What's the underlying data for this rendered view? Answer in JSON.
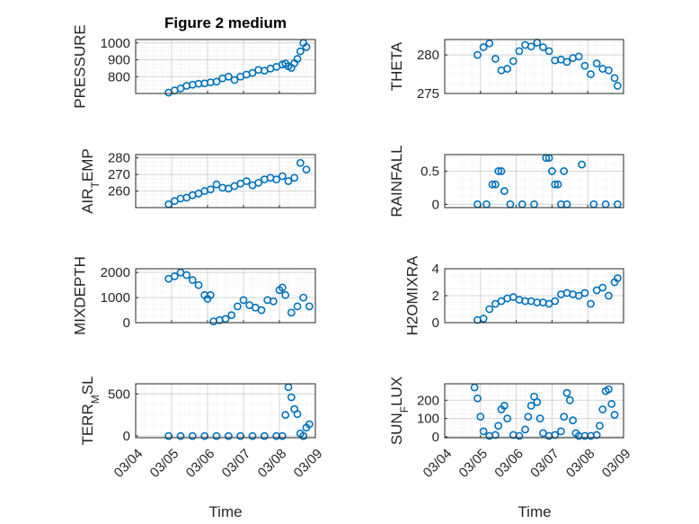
{
  "figure": {
    "title": "Figure 2 medium",
    "xlabel": "Time"
  },
  "colors": {
    "marker": "#0072BD",
    "axis": "#262626",
    "grid": "#dcdcdc"
  },
  "chart_data": [
    {
      "id": "pressure",
      "type": "scatter",
      "ylabel": "PRESSURE",
      "ylabel_sub": "",
      "ylim": [
        700,
        1020
      ],
      "yticks": [
        800,
        900,
        1000
      ],
      "xticks": [],
      "xlim": [
        "03/04",
        "03/09"
      ],
      "grid": true,
      "x": [
        "03/04 22:00",
        "03/05 02:00",
        "03/05 06:00",
        "03/05 10:00",
        "03/05 14:00",
        "03/05 18:00",
        "03/05 22:00",
        "03/06 02:00",
        "03/06 06:00",
        "03/06 10:00",
        "03/06 14:00",
        "03/06 18:00",
        "03/06 22:00",
        "03/07 02:00",
        "03/07 06:00",
        "03/07 10:00",
        "03/07 14:00",
        "03/07 18:00",
        "03/07 22:00",
        "03/08 02:00",
        "03/08 04:00",
        "03/08 06:00",
        "03/08 08:00",
        "03/08 10:00",
        "03/08 12:00",
        "03/08 14:00",
        "03/08 16:00",
        "03/08 18:00"
      ],
      "y": [
        705,
        718,
        730,
        745,
        752,
        758,
        760,
        766,
        770,
        790,
        800,
        780,
        800,
        812,
        822,
        840,
        835,
        848,
        858,
        872,
        878,
        862,
        852,
        880,
        905,
        950,
        1000,
        975
      ]
    },
    {
      "id": "theta",
      "type": "scatter",
      "ylabel": "THETA",
      "ylabel_sub": "",
      "ylim": [
        275,
        282
      ],
      "yticks": [
        275,
        280
      ],
      "xticks": [],
      "xlim": [
        "03/04",
        "03/09"
      ],
      "grid": true,
      "x": [
        "03/04 22:00",
        "03/05 02:00",
        "03/05 06:00",
        "03/05 10:00",
        "03/05 14:00",
        "03/05 18:00",
        "03/05 22:00",
        "03/06 02:00",
        "03/06 06:00",
        "03/06 10:00",
        "03/06 14:00",
        "03/06 18:00",
        "03/06 22:00",
        "03/07 02:00",
        "03/07 06:00",
        "03/07 10:00",
        "03/07 14:00",
        "03/07 18:00",
        "03/07 22:00",
        "03/08 02:00",
        "03/08 06:00",
        "03/08 10:00",
        "03/08 14:00",
        "03/08 18:00",
        "03/08 20:00"
      ],
      "y": [
        280,
        281,
        281.5,
        279.5,
        278,
        278.2,
        279.2,
        280.5,
        281.3,
        281.1,
        281.6,
        281,
        280.5,
        279.3,
        279.4,
        279.1,
        279.6,
        279.8,
        278.6,
        277.5,
        278.9,
        278.2,
        278,
        277,
        276
      ]
    },
    {
      "id": "air_temp",
      "type": "scatter",
      "ylabel": "AIR",
      "ylabel_sub": "T",
      "ylabel_tail": "EMP",
      "ylim": [
        250,
        282
      ],
      "yticks": [
        260,
        270,
        280
      ],
      "xticks": [],
      "xlim": [
        "03/04",
        "03/09"
      ],
      "grid": true,
      "x": [
        "03/04 22:00",
        "03/05 02:00",
        "03/05 06:00",
        "03/05 10:00",
        "03/05 14:00",
        "03/05 18:00",
        "03/05 22:00",
        "03/06 02:00",
        "03/06 06:00",
        "03/06 10:00",
        "03/06 14:00",
        "03/06 18:00",
        "03/06 22:00",
        "03/07 02:00",
        "03/07 06:00",
        "03/07 10:00",
        "03/07 14:00",
        "03/07 18:00",
        "03/07 22:00",
        "03/08 02:00",
        "03/08 06:00",
        "03/08 10:00",
        "03/08 14:00",
        "03/08 18:00"
      ],
      "y": [
        252,
        254,
        255.5,
        256,
        257.5,
        258.5,
        260,
        261,
        264,
        262,
        261.5,
        263,
        264.5,
        266,
        263.5,
        265,
        267,
        268,
        267,
        269,
        266,
        268,
        277,
        273
      ]
    },
    {
      "id": "rainfall",
      "type": "scatter",
      "ylabel": "RAINFALL",
      "ylabel_sub": "",
      "ylim": [
        -0.05,
        0.75
      ],
      "yticks": [
        0,
        0.5
      ],
      "xticks": [],
      "xlim": [
        "03/04",
        "03/09"
      ],
      "grid": true,
      "x": [
        "03/04 22:00",
        "03/05 04:00",
        "03/05 08:00",
        "03/05 10:00",
        "03/05 12:00",
        "03/05 14:00",
        "03/05 16:00",
        "03/05 20:00",
        "03/06 04:00",
        "03/06 12:00",
        "03/06 20:00",
        "03/06 22:00",
        "03/07 00:00",
        "03/07 02:00",
        "03/07 04:00",
        "03/07 06:00",
        "03/07 08:00",
        "03/07 10:00",
        "03/07 20:00",
        "03/08 04:00",
        "03/08 12:00",
        "03/08 20:00"
      ],
      "y": [
        0,
        0,
        0.3,
        0.3,
        0.5,
        0.5,
        0.2,
        0,
        0,
        0,
        0.7,
        0.7,
        0.5,
        0.3,
        0.3,
        0,
        0.5,
        0,
        0.6,
        0,
        0,
        0
      ]
    },
    {
      "id": "mixdepth",
      "type": "scatter",
      "ylabel": "MIXDEPTH",
      "ylabel_sub": "",
      "ylim": [
        0,
        2150
      ],
      "yticks": [
        0,
        1000,
        2000
      ],
      "xticks": [],
      "xlim": [
        "03/04",
        "03/09"
      ],
      "grid": true,
      "x": [
        "03/04 22:00",
        "03/05 02:00",
        "03/05 06:00",
        "03/05 10:00",
        "03/05 14:00",
        "03/05 18:00",
        "03/05 22:00",
        "03/06 00:00",
        "03/06 02:00",
        "03/06 04:00",
        "03/06 08:00",
        "03/06 12:00",
        "03/06 16:00",
        "03/06 20:00",
        "03/07 00:00",
        "03/07 04:00",
        "03/07 08:00",
        "03/07 12:00",
        "03/07 16:00",
        "03/07 20:00",
        "03/08 00:00",
        "03/08 02:00",
        "03/08 04:00",
        "03/08 08:00",
        "03/08 12:00",
        "03/08 16:00",
        "03/08 20:00"
      ],
      "y": [
        1750,
        1850,
        2000,
        1900,
        1700,
        1500,
        1100,
        950,
        1100,
        50,
        100,
        150,
        300,
        650,
        900,
        700,
        600,
        500,
        900,
        850,
        1300,
        1400,
        1100,
        400,
        650,
        1000,
        650
      ]
    },
    {
      "id": "h2omixra",
      "type": "scatter",
      "ylabel": "H2OMIXRA",
      "ylabel_sub": "",
      "ylim": [
        0,
        4
      ],
      "yticks": [
        0,
        2,
        4
      ],
      "xticks": [],
      "xlim": [
        "03/04",
        "03/09"
      ],
      "grid": true,
      "x": [
        "03/04 22:00",
        "03/05 02:00",
        "03/05 06:00",
        "03/05 10:00",
        "03/05 14:00",
        "03/05 18:00",
        "03/05 22:00",
        "03/06 02:00",
        "03/06 06:00",
        "03/06 10:00",
        "03/06 14:00",
        "03/06 18:00",
        "03/06 22:00",
        "03/07 02:00",
        "03/07 06:00",
        "03/07 10:00",
        "03/07 14:00",
        "03/07 18:00",
        "03/07 22:00",
        "03/08 02:00",
        "03/08 06:00",
        "03/08 10:00",
        "03/08 14:00",
        "03/08 18:00",
        "03/08 20:00"
      ],
      "y": [
        0.2,
        0.3,
        1.0,
        1.4,
        1.6,
        1.8,
        1.9,
        1.7,
        1.6,
        1.6,
        1.5,
        1.5,
        1.4,
        1.6,
        2.1,
        2.2,
        2.1,
        2.0,
        2.2,
        1.4,
        2.4,
        2.6,
        2.0,
        3.0,
        3.3
      ]
    },
    {
      "id": "terr_msl",
      "type": "scatter",
      "ylabel": "TERR",
      "ylabel_sub": "M",
      "ylabel_tail": "SL",
      "ylim": [
        -20,
        620
      ],
      "yticks": [
        0,
        500
      ],
      "xticks": [
        "03/04",
        "03/05",
        "03/06",
        "03/07",
        "03/08",
        "03/09"
      ],
      "xlim": [
        "03/04",
        "03/09"
      ],
      "grid": true,
      "x": [
        "03/04 22:00",
        "03/05 06:00",
        "03/05 14:00",
        "03/05 22:00",
        "03/06 06:00",
        "03/06 14:00",
        "03/06 22:00",
        "03/07 06:00",
        "03/07 14:00",
        "03/07 22:00",
        "03/08 02:00",
        "03/08 04:00",
        "03/08 06:00",
        "03/08 08:00",
        "03/08 10:00",
        "03/08 12:00",
        "03/08 14:00",
        "03/08 16:00",
        "03/08 18:00",
        "03/08 20:00"
      ],
      "y": [
        0,
        0,
        0,
        0,
        0,
        0,
        0,
        0,
        0,
        0,
        0,
        250,
        580,
        460,
        320,
        260,
        30,
        0,
        100,
        140
      ]
    },
    {
      "id": "sun_flux",
      "type": "scatter",
      "ylabel": "SUN",
      "ylabel_sub": "F",
      "ylabel_tail": "LUX",
      "ylim": [
        -5,
        290
      ],
      "yticks": [
        0,
        100,
        200
      ],
      "xticks": [
        "03/04",
        "03/05",
        "03/06",
        "03/07",
        "03/08",
        "03/09"
      ],
      "xlim": [
        "03/04",
        "03/09"
      ],
      "grid": true,
      "x": [
        "03/04 20:00",
        "03/04 22:00",
        "03/05 00:00",
        "03/05 02:00",
        "03/05 06:00",
        "03/05 10:00",
        "03/05 12:00",
        "03/05 14:00",
        "03/05 16:00",
        "03/05 18:00",
        "03/05 22:00",
        "03/06 02:00",
        "03/06 06:00",
        "03/06 08:00",
        "03/06 10:00",
        "03/06 12:00",
        "03/06 14:00",
        "03/06 16:00",
        "03/06 18:00",
        "03/06 22:00",
        "03/07 02:00",
        "03/07 06:00",
        "03/07 08:00",
        "03/07 10:00",
        "03/07 12:00",
        "03/07 14:00",
        "03/07 16:00",
        "03/07 18:00",
        "03/07 22:00",
        "03/08 02:00",
        "03/08 06:00",
        "03/08 08:00",
        "03/08 10:00",
        "03/08 12:00",
        "03/08 14:00",
        "03/08 16:00",
        "03/08 18:00"
      ],
      "y": [
        270,
        210,
        110,
        30,
        5,
        10,
        60,
        150,
        170,
        100,
        10,
        5,
        40,
        110,
        170,
        220,
        190,
        100,
        20,
        5,
        10,
        30,
        110,
        240,
        200,
        90,
        20,
        5,
        5,
        5,
        10,
        60,
        150,
        250,
        260,
        180,
        120
      ]
    }
  ]
}
